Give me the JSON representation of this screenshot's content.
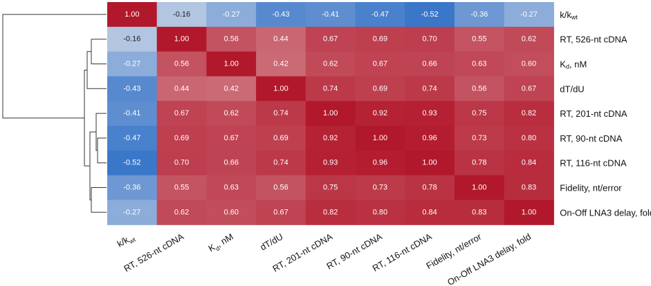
{
  "chart_data": {
    "type": "heatmap",
    "title": "",
    "labels": [
      {
        "main": "k/k",
        "sub": "wt"
      },
      {
        "main": "RT, 526-nt cDNA",
        "sub": ""
      },
      {
        "main": "K",
        "sub": "d",
        "suffix": ", nM"
      },
      {
        "main": "dT/dU",
        "sub": ""
      },
      {
        "main": "RT, 201-nt cDNA",
        "sub": ""
      },
      {
        "main": "RT, 90-nt cDNA",
        "sub": ""
      },
      {
        "main": "RT, 116-nt cDNA",
        "sub": ""
      },
      {
        "main": "Fidelity, nt/error",
        "sub": ""
      },
      {
        "main": "On-Off LNA3 delay, fold",
        "sub": ""
      }
    ],
    "matrix": [
      [
        "1.00",
        "-0.16",
        "-0.27",
        "-0.43",
        "-0.41",
        "-0.47",
        "-0.52",
        "-0.36",
        "-0.27"
      ],
      [
        "-0.16",
        "1.00",
        "0.56",
        "0.44",
        "0.67",
        "0.69",
        "0.70",
        "0.55",
        "0.62"
      ],
      [
        "-0.27",
        "0.56",
        "1.00",
        "0.42",
        "0.62",
        "0.67",
        "0.66",
        "0.63",
        "0.60"
      ],
      [
        "-0.43",
        "0.44",
        "0.42",
        "1.00",
        "0.74",
        "0.69",
        "0.74",
        "0.56",
        "0.67"
      ],
      [
        "-0.41",
        "0.67",
        "0.62",
        "0.74",
        "1.00",
        "0.92",
        "0.93",
        "0.75",
        "0.82"
      ],
      [
        "-0.47",
        "0.69",
        "0.67",
        "0.69",
        "0.92",
        "1.00",
        "0.96",
        "0.73",
        "0.80"
      ],
      [
        "-0.52",
        "0.70",
        "0.66",
        "0.74",
        "0.93",
        "0.96",
        "1.00",
        "0.78",
        "0.84"
      ],
      [
        "-0.36",
        "0.55",
        "0.63",
        "0.56",
        "0.75",
        "0.73",
        "0.78",
        "1.00",
        "0.83"
      ],
      [
        "-0.27",
        "0.62",
        "0.60",
        "0.67",
        "0.82",
        "0.80",
        "0.84",
        "0.83",
        "1.00"
      ]
    ],
    "value_range": [
      -0.6,
      1.0
    ],
    "colormap": {
      "low": "#2166c4",
      "mid": "#f2efee",
      "high": "#b2182b"
    },
    "dendrogram": "left"
  }
}
